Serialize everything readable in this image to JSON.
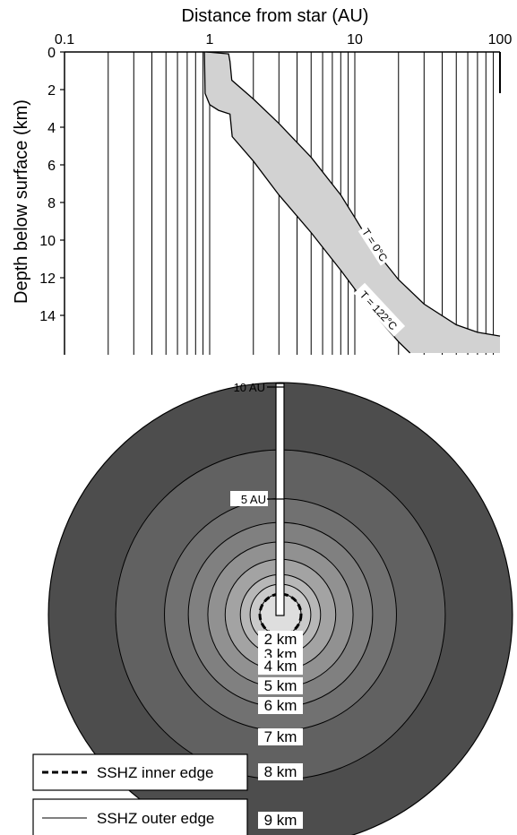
{
  "chart_data": [
    {
      "type": "area",
      "xlabel": "Distance from star (AU)",
      "ylabel": "Depth below surface (km)",
      "x_scale": "log",
      "xlim": [
        0.1,
        100
      ],
      "ylim": [
        0,
        16
      ],
      "y_inverted": true,
      "x_ticks": [
        "0.1",
        "1",
        "10",
        "100"
      ],
      "y_ticks": [
        "0",
        "2",
        "4",
        "6",
        "8",
        "10",
        "12",
        "14"
      ],
      "grid": "vertical log gridlines",
      "fill_color": "#d2d2d2",
      "series": [
        {
          "name": "T = 0°C",
          "x": [
            0.95,
            1.35,
            1.38,
            1.42,
            2,
            3,
            5,
            8,
            10,
            12,
            15,
            20,
            30,
            50,
            70,
            100
          ],
          "y": [
            0.0,
            0.1,
            0.5,
            1.5,
            2.5,
            3.8,
            5.6,
            7.6,
            8.8,
            9.8,
            10.9,
            12.1,
            13.4,
            14.5,
            14.9,
            15.1
          ]
        },
        {
          "name": "T = 122°C",
          "x": [
            0.92,
            0.93,
            1.0,
            1.15,
            1.38,
            1.43,
            2,
            3,
            5,
            8,
            10,
            15,
            20,
            24
          ],
          "y": [
            0.0,
            2.2,
            2.8,
            3.1,
            3.3,
            4.5,
            5.8,
            7.6,
            9.6,
            11.6,
            12.6,
            14.3,
            15.4,
            16.0
          ]
        }
      ]
    },
    {
      "type": "diagram",
      "labels": {
        "au_10": "10 AU",
        "au_5": "5 AU",
        "depths": [
          "2 km",
          "3 km",
          "4 km",
          "5 km",
          "6 km",
          "7 km",
          "8 km",
          "9 km"
        ]
      },
      "ring_radii_au": [
        10.7,
        7.6,
        5.35,
        4.25,
        3.35,
        2.55,
        1.85,
        1.4,
        0.95
      ],
      "ring_colors": [
        "#4d4d4d",
        "#616161",
        "#717171",
        "#808080",
        "#919191",
        "#a3a3a3",
        "#b7b7b7",
        "#cacaca",
        "#dedede"
      ],
      "inner_edge_radius_au": 0.95,
      "legend": {
        "inner": "SSHZ inner edge",
        "outer": "SSHZ outer edge"
      }
    }
  ]
}
